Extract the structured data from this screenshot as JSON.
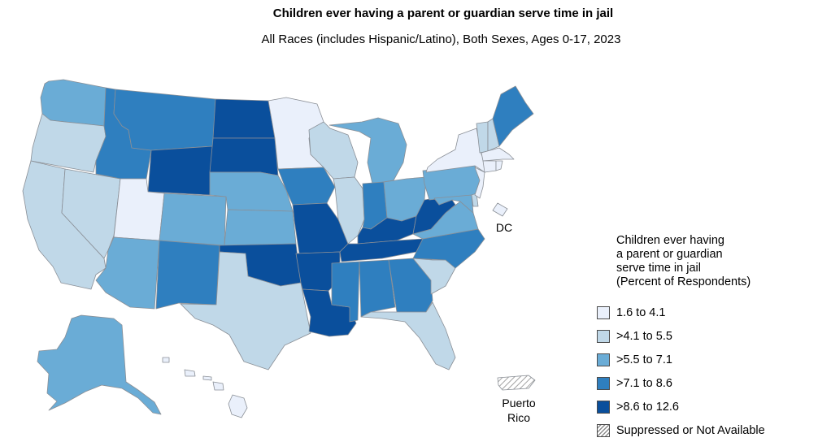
{
  "header": {
    "title": "Children ever having a parent or guardian serve time in jail",
    "subtitle": "All Races (includes Hispanic/Latino), Both Sexes, Ages 0-17, 2023"
  },
  "labels": {
    "dc": "DC",
    "puerto_rico_line1": "Puerto",
    "puerto_rico_line2": "Rico"
  },
  "legend": {
    "title_lines": [
      "Children ever having",
      "a parent or guardian",
      "serve time in jail",
      "(Percent of Respondents)"
    ],
    "items": [
      {
        "label": "1.6 to 4.1",
        "color": "#eaf0fb"
      },
      {
        "label": ">4.1 to 5.5",
        "color": "#c0d8e8"
      },
      {
        "label": ">5.5 to 7.1",
        "color": "#6aacd6"
      },
      {
        "label": ">7.1 to 8.6",
        "color": "#2f7fbf"
      },
      {
        "label": ">8.6 to 12.6",
        "color": "#0a4f9c"
      },
      {
        "label": "Suppressed or Not Available",
        "color": "hatch"
      }
    ]
  },
  "map_data": {
    "measure": "Percent of children ever having a parent or guardian serve time in jail",
    "classes": {
      "WA": 3,
      "OR": 2,
      "CA": 2,
      "NV": 2,
      "ID": 4,
      "MT": 4,
      "WY": 5,
      "UT": 1,
      "AZ": 3,
      "CO": 3,
      "NM": 4,
      "ND": 5,
      "SD": 5,
      "NE": 3,
      "KS": 3,
      "OK": 5,
      "TX": 2,
      "MN": 1,
      "IA": 4,
      "MO": 5,
      "AR": 5,
      "LA": 5,
      "WI": 2,
      "IL": 2,
      "MI": 3,
      "IN": 4,
      "OH": 3,
      "KY": 5,
      "TN": 5,
      "MS": 4,
      "AL": 4,
      "GA": 4,
      "FL": 2,
      "SC": 2,
      "NC": 4,
      "VA": 3,
      "WV": 5,
      "PA": 3,
      "NY": 1,
      "VT": 2,
      "NH": 2,
      "ME": 4,
      "MA": 1,
      "RI": 1,
      "CT": 1,
      "NJ": 1,
      "DE": 2,
      "MD": 3,
      "DC": 1,
      "AK": 3,
      "HI": 1,
      "PR": 0
    }
  }
}
